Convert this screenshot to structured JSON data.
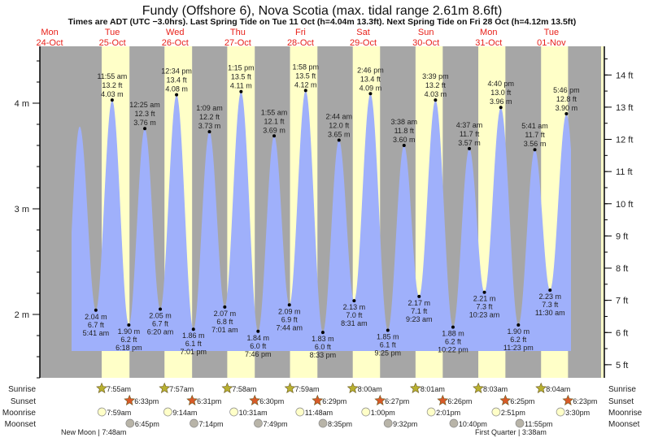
{
  "chart_data": {
    "type": "area",
    "title": "Fundy (Offshore 6), Nova Scotia (max. tidal range 2.61m 8.6ft)",
    "subtitle": "Times are ADT (UTC −3.0hrs). Last Spring Tide on Tue 11 Oct (h=4.04m 13.3ft). Next Spring Tide on Fri 28 Oct (h=4.12m 13.5ft)",
    "y_left": {
      "unit": "m",
      "ticks": [
        {
          "v": 4,
          "label": "4 m"
        },
        {
          "v": 3,
          "label": "3 m"
        },
        {
          "v": 2,
          "label": "2 m"
        }
      ]
    },
    "y_right": {
      "unit": "ft",
      "ticks": [
        {
          "v": 5,
          "label": "5 ft"
        },
        {
          "v": 6,
          "label": "6 ft"
        },
        {
          "v": 7,
          "label": "7 ft"
        },
        {
          "v": 8,
          "label": "8 ft"
        },
        {
          "v": 9,
          "label": "9 ft"
        },
        {
          "v": 10,
          "label": "10 ft"
        },
        {
          "v": 11,
          "label": "11 ft"
        },
        {
          "v": 12,
          "label": "12 ft"
        },
        {
          "v": 13,
          "label": "13 ft"
        },
        {
          "v": 14,
          "label": "14 ft"
        }
      ]
    },
    "days": [
      {
        "dow": "Mon",
        "date": "24-Oct"
      },
      {
        "dow": "Tue",
        "date": "25-Oct"
      },
      {
        "dow": "Wed",
        "date": "26-Oct"
      },
      {
        "dow": "Thu",
        "date": "27-Oct"
      },
      {
        "dow": "Fri",
        "date": "28-Oct"
      },
      {
        "dow": "Sat",
        "date": "29-Oct"
      },
      {
        "dow": "Sun",
        "date": "30-Oct"
      },
      {
        "dow": "Mon",
        "date": "31-Oct"
      },
      {
        "dow": "Tue",
        "date": "01-Nov"
      }
    ],
    "tides": [
      {
        "date": "24-Oct",
        "time": "5:20 pm",
        "m": 1.8,
        "labeled": false
      },
      {
        "date": "24-Oct",
        "time": "11:30 pm",
        "m": 3.78,
        "labeled": false
      },
      {
        "date": "25-Oct",
        "time": "5:41 am",
        "ft": "6.7 ft",
        "m": 2.04,
        "m_label": "2.04 m",
        "type": "low"
      },
      {
        "date": "25-Oct",
        "time": "11:55 am",
        "ft": "13.2 ft",
        "m": 4.03,
        "m_label": "4.03 m",
        "type": "high"
      },
      {
        "date": "25-Oct",
        "time": "6:18 pm",
        "ft": "6.2 ft",
        "m": 1.9,
        "m_label": "1.90 m",
        "type": "low"
      },
      {
        "date": "26-Oct",
        "time": "12:25 am",
        "ft": "12.3 ft",
        "m": 3.76,
        "m_label": "3.76 m",
        "type": "high"
      },
      {
        "date": "26-Oct",
        "time": "6:20 am",
        "ft": "6.7 ft",
        "m": 2.05,
        "m_label": "2.05 m",
        "type": "low"
      },
      {
        "date": "26-Oct",
        "time": "12:34 pm",
        "ft": "13.4 ft",
        "m": 4.08,
        "m_label": "4.08 m",
        "type": "high"
      },
      {
        "date": "26-Oct",
        "time": "7:01 pm",
        "ft": "6.1 ft",
        "m": 1.86,
        "m_label": "1.86 m",
        "type": "low"
      },
      {
        "date": "27-Oct",
        "time": "1:09 am",
        "ft": "12.2 ft",
        "m": 3.73,
        "m_label": "3.73 m",
        "type": "high"
      },
      {
        "date": "27-Oct",
        "time": "7:01 am",
        "ft": "6.8 ft",
        "m": 2.07,
        "m_label": "2.07 m",
        "type": "low"
      },
      {
        "date": "27-Oct",
        "time": "1:15 pm",
        "ft": "13.5 ft",
        "m": 4.11,
        "m_label": "4.11 m",
        "type": "high"
      },
      {
        "date": "27-Oct",
        "time": "7:46 pm",
        "ft": "6.0 ft",
        "m": 1.84,
        "m_label": "1.84 m",
        "type": "low"
      },
      {
        "date": "28-Oct",
        "time": "1:55 am",
        "ft": "12.1 ft",
        "m": 3.69,
        "m_label": "3.69 m",
        "type": "high"
      },
      {
        "date": "28-Oct",
        "time": "7:44 am",
        "ft": "6.9 ft",
        "m": 2.09,
        "m_label": "2.09 m",
        "type": "low"
      },
      {
        "date": "28-Oct",
        "time": "1:58 pm",
        "ft": "13.5 ft",
        "m": 4.12,
        "m_label": "4.12 m",
        "type": "high"
      },
      {
        "date": "28-Oct",
        "time": "8:33 pm",
        "ft": "6.0 ft",
        "m": 1.83,
        "m_label": "1.83 m",
        "type": "low"
      },
      {
        "date": "29-Oct",
        "time": "2:44 am",
        "ft": "12.0 ft",
        "m": 3.65,
        "m_label": "3.65 m",
        "type": "high"
      },
      {
        "date": "29-Oct",
        "time": "8:31 am",
        "ft": "7.0 ft",
        "m": 2.13,
        "m_label": "2.13 m",
        "type": "low"
      },
      {
        "date": "29-Oct",
        "time": "2:46 pm",
        "ft": "13.4 ft",
        "m": 4.09,
        "m_label": "4.09 m",
        "type": "high"
      },
      {
        "date": "29-Oct",
        "time": "9:25 pm",
        "ft": "6.1 ft",
        "m": 1.85,
        "m_label": "1.85 m",
        "type": "low"
      },
      {
        "date": "30-Oct",
        "time": "3:38 am",
        "ft": "11.8 ft",
        "m": 3.6,
        "m_label": "3.60 m",
        "type": "high"
      },
      {
        "date": "30-Oct",
        "time": "9:23 am",
        "ft": "7.1 ft",
        "m": 2.17,
        "m_label": "2.17 m",
        "type": "low"
      },
      {
        "date": "30-Oct",
        "time": "3:39 pm",
        "ft": "13.2 ft",
        "m": 4.03,
        "m_label": "4.03 m",
        "type": "high"
      },
      {
        "date": "30-Oct",
        "time": "10:22 pm",
        "ft": "6.2 ft",
        "m": 1.88,
        "m_label": "1.88 m",
        "type": "low"
      },
      {
        "date": "31-Oct",
        "time": "4:37 am",
        "ft": "11.7 ft",
        "m": 3.57,
        "m_label": "3.57 m",
        "type": "high"
      },
      {
        "date": "31-Oct",
        "time": "10:23 am",
        "ft": "7.3 ft",
        "m": 2.21,
        "m_label": "2.21 m",
        "type": "low"
      },
      {
        "date": "31-Oct",
        "time": "4:40 pm",
        "ft": "13.0 ft",
        "m": 3.96,
        "m_label": "3.96 m",
        "type": "high"
      },
      {
        "date": "31-Oct",
        "time": "11:23 pm",
        "ft": "6.2 ft",
        "m": 1.9,
        "m_label": "1.90 m",
        "type": "low"
      },
      {
        "date": "01-Nov",
        "time": "5:41 am",
        "ft": "11.7 ft",
        "m": 3.56,
        "m_label": "3.56 m",
        "type": "high"
      },
      {
        "date": "01-Nov",
        "time": "11:30 am",
        "ft": "7.3 ft",
        "m": 2.23,
        "m_label": "2.23 m",
        "type": "low"
      },
      {
        "date": "01-Nov",
        "time": "5:46 pm",
        "ft": "12.8 ft",
        "m": 3.9,
        "m_label": "3.90 m",
        "type": "high"
      },
      {
        "date": "02-Nov",
        "time": "12:10 am",
        "m": 1.95,
        "labeled": false
      }
    ],
    "rows": {
      "labels": {
        "sunrise": "Sunrise",
        "sunset": "Sunset",
        "moonrise": "Moonrise",
        "moonset": "Moonset"
      },
      "sunrise": [
        {
          "date": "25-Oct",
          "time": "7:55am"
        },
        {
          "date": "26-Oct",
          "time": "7:57am"
        },
        {
          "date": "27-Oct",
          "time": "7:58am"
        },
        {
          "date": "28-Oct",
          "time": "7:59am"
        },
        {
          "date": "29-Oct",
          "time": "8:00am"
        },
        {
          "date": "30-Oct",
          "time": "8:01am"
        },
        {
          "date": "31-Oct",
          "time": "8:03am"
        },
        {
          "date": "01-Nov",
          "time": "8:04am"
        }
      ],
      "sunset": [
        {
          "date": "25-Oct",
          "time": "6:33pm"
        },
        {
          "date": "26-Oct",
          "time": "6:31pm"
        },
        {
          "date": "27-Oct",
          "time": "6:30pm"
        },
        {
          "date": "28-Oct",
          "time": "6:29pm"
        },
        {
          "date": "29-Oct",
          "time": "6:27pm"
        },
        {
          "date": "30-Oct",
          "time": "6:26pm"
        },
        {
          "date": "31-Oct",
          "time": "6:25pm"
        },
        {
          "date": "01-Nov",
          "time": "6:23pm"
        }
      ],
      "moonrise": [
        {
          "date": "25-Oct",
          "time": "7:59am"
        },
        {
          "date": "26-Oct",
          "time": "9:14am"
        },
        {
          "date": "27-Oct",
          "time": "10:31am"
        },
        {
          "date": "28-Oct",
          "time": "11:48am"
        },
        {
          "date": "29-Oct",
          "time": "1:00pm"
        },
        {
          "date": "30-Oct",
          "time": "2:01pm"
        },
        {
          "date": "31-Oct",
          "time": "2:51pm"
        },
        {
          "date": "01-Nov",
          "time": "3:30pm"
        }
      ],
      "moonset": [
        {
          "date": "25-Oct",
          "time": "6:45pm"
        },
        {
          "date": "26-Oct",
          "time": "7:14pm"
        },
        {
          "date": "27-Oct",
          "time": "7:49pm"
        },
        {
          "date": "28-Oct",
          "time": "8:35pm"
        },
        {
          "date": "29-Oct",
          "time": "9:32pm"
        },
        {
          "date": "30-Oct",
          "time": "10:40pm"
        },
        {
          "date": "31-Oct",
          "time": "11:55pm"
        }
      ]
    },
    "moon_phases": [
      {
        "label": "New Moon | 7:48am"
      },
      {
        "label": "First Quarter | 3:38am"
      }
    ],
    "colors": {
      "night": "#a6a6a6",
      "day": "#ffffc8",
      "water": "#9fb0fb",
      "day_label": "#e8211a",
      "sunrise": "#b8b030",
      "sunset": "#d85a28",
      "moonrise": "#ffffc8",
      "moonset": "#b8b4a8"
    }
  }
}
